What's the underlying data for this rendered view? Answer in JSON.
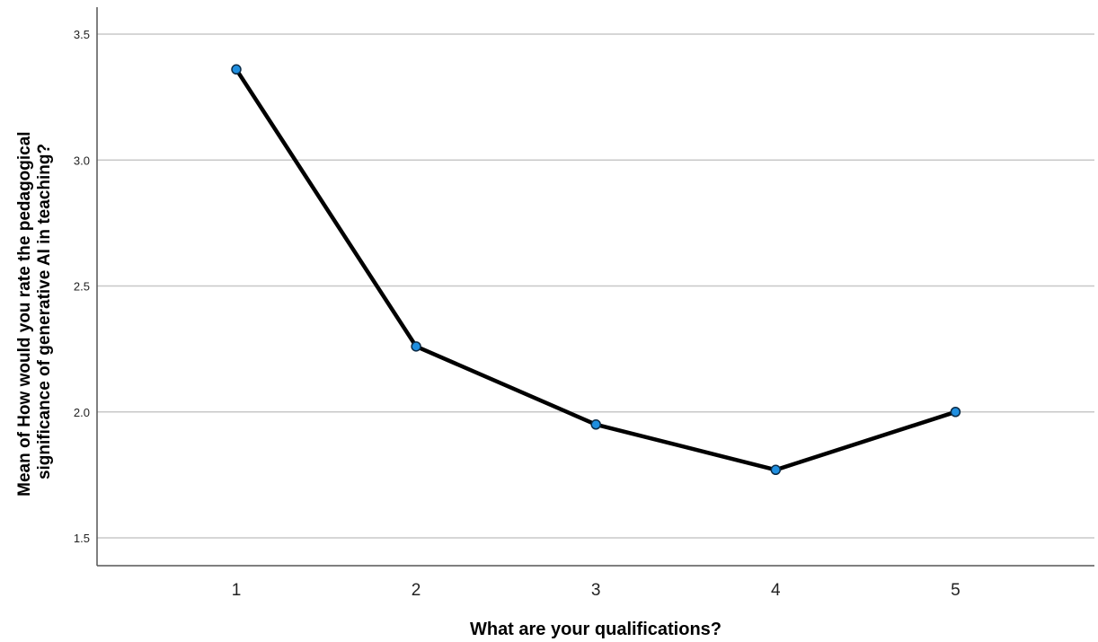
{
  "chart_data": {
    "type": "line",
    "title": "",
    "xlabel": "What are your qualifications?",
    "ylabel_lines": [
      "Mean of How would you rate the pedagogical",
      "significance of generative AI in teaching?"
    ],
    "categories": [
      "1",
      "2",
      "3",
      "4",
      "5"
    ],
    "series": [
      {
        "values": [
          3.36,
          2.26,
          1.95,
          1.77,
          2.0
        ]
      }
    ],
    "y_ticks": [
      "1.5",
      "2.0",
      "2.5",
      "3.0",
      "3.5"
    ],
    "ylim": [
      1.4,
      3.6
    ],
    "grid": "horizontal",
    "legend": "none",
    "colors": {
      "line": "#000000",
      "marker_fill": "#1f8fe0",
      "marker_stroke": "#0b2a45",
      "grid": "#c8c8c8",
      "axis": "#555555"
    }
  }
}
